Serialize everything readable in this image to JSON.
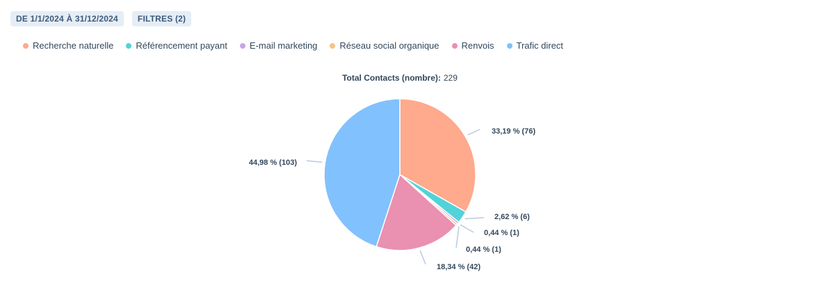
{
  "filters": {
    "date_range": "DE 1/1/2024 À 31/12/2024",
    "filters_label": "FILTRES (2)"
  },
  "legend": {
    "items": [
      {
        "label": "Recherche naturelle",
        "color": "#ffa98d"
      },
      {
        "label": "Référencement payant",
        "color": "#51d3d9"
      },
      {
        "label": "E-mail marketing",
        "color": "#c6a5e8"
      },
      {
        "label": "Réseau social organique",
        "color": "#f5c38c"
      },
      {
        "label": "Renvois",
        "color": "#ea90b1"
      },
      {
        "label": "Trafic direct",
        "color": "#81c1fd"
      }
    ]
  },
  "chart_data": {
    "type": "pie",
    "title_prefix": "Total Contacts (nombre):",
    "total": "229",
    "slices": [
      {
        "name": "Recherche naturelle",
        "value": 76,
        "label": "33,19 % (76)",
        "color": "#ffa98d"
      },
      {
        "name": "Référencement payant",
        "value": 6,
        "label": "2,62 % (6)",
        "color": "#51d3d9"
      },
      {
        "name": "E-mail marketing",
        "value": 1,
        "label": "0,44 % (1)",
        "color": "#c6a5e8"
      },
      {
        "name": "Réseau social organique",
        "value": 1,
        "label": "0,44 % (1)",
        "color": "#f5c38c"
      },
      {
        "name": "Renvois",
        "value": 42,
        "label": "18,34 % (42)",
        "color": "#ea90b1"
      },
      {
        "name": "Trafic direct",
        "value": 103,
        "label": "44,98 % (103)",
        "color": "#81c1fd"
      }
    ]
  }
}
